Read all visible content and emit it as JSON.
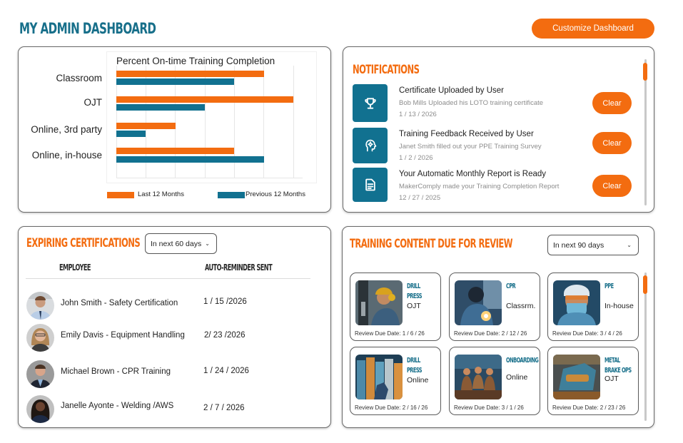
{
  "header": {
    "title": "MY ADMIN DASHBOARD",
    "customize_label": "Customize Dashboard"
  },
  "colors": {
    "brand_teal": "#176f8a",
    "bar_teal": "#117190",
    "accent_orange": "#f36c10"
  },
  "chart_data": {
    "type": "bar",
    "orientation": "horizontal",
    "title": "Percent On-time Training Completion",
    "categories": [
      "Classroom",
      "OJT",
      "Online, 3rd party",
      "Online, in-house"
    ],
    "series": [
      {
        "name": "Last 12 Months",
        "color": "#f36c10",
        "values": [
          5,
          6,
          2,
          4
        ]
      },
      {
        "name": "Previous 12 Months",
        "color": "#117190",
        "values": [
          4,
          3,
          1,
          5
        ]
      }
    ],
    "xlabel": "",
    "ylabel": "",
    "xlim": [
      0,
      6
    ],
    "x_units": "gridline intervals (no numeric tick labels shown)",
    "grid": true,
    "legend_position": "bottom"
  },
  "notifications": {
    "title": "NOTIFICATIONS",
    "items": [
      {
        "icon": "trophy-icon",
        "title": "Certificate Uploaded by User",
        "description": "Bob Mills Uploaded his LOTO training certificate",
        "date": "1 / 13 / 2026",
        "action": "Clear"
      },
      {
        "icon": "head-gear-icon",
        "title": "Training Feedback Received by User",
        "description": "Janet Smith filled out your PPE Training Survey",
        "date": "1 / 2 / 2026",
        "action": "Clear"
      },
      {
        "icon": "document-icon",
        "title": "Your Automatic Monthly Report is Ready",
        "description": "MakerComply made your Training Completion Report",
        "date": "12 / 27 / 2025",
        "action": "Clear"
      }
    ]
  },
  "expiring": {
    "title": "EXPIRING CERTIFICATIONS",
    "filter": "In next 60 days",
    "columns": [
      "EMPLOYEE",
      "AUTO-REMINDER SENT"
    ],
    "rows": [
      {
        "employee": "John Smith - Safety Certification",
        "reminder": "1 / 15 /2026"
      },
      {
        "employee": "Emily Davis - Equipment Handling",
        "reminder": "2/ 23 /2026"
      },
      {
        "employee": "Michael Brown - CPR Training",
        "reminder": "1 / 24 / 2026"
      },
      {
        "employee": "Janelle Ayonte - Welding /AWS",
        "reminder": "2 / 7 / 2026"
      }
    ]
  },
  "content_review": {
    "title": "TRAINING CONTENT DUE FOR REVIEW",
    "filter": "In next 90 days",
    "tiles": [
      {
        "title_line1": "DRILL",
        "title_line2": "PRESS",
        "type": "OJT",
        "due": "Review Due Date: 1 / 6 / 26"
      },
      {
        "title_line1": "CPR",
        "title_line2": "",
        "type": "Classrm.",
        "due": "Review Due Date: 2 / 12 / 26"
      },
      {
        "title_line1": "PPE",
        "title_line2": "",
        "type": "In-house",
        "due": "Review Due Date: 3 / 4 / 26"
      },
      {
        "title_line1": "DRILL",
        "title_line2": "PRESS",
        "type": "Online",
        "due": "Review Due Date: 2 / 16 / 26"
      },
      {
        "title_line1": "ONBOARDING",
        "title_line2": "",
        "type": "Online",
        "due": "Review Due Date: 3 / 1 / 26"
      },
      {
        "title_line1": "METAL",
        "title_line2": "BRAKE OPS",
        "type": "OJT",
        "due": "Review Due Date: 2 / 23 / 26"
      }
    ]
  }
}
